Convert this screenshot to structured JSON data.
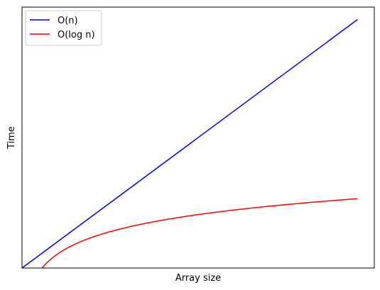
{
  "chart_data": {
    "type": "line",
    "title": "",
    "xlabel": "Array size",
    "ylabel": "Time",
    "x_ticks_shown": false,
    "y_ticks_shown": false,
    "grid": false,
    "legend_position": "top-left",
    "xlim": [
      0,
      1050
    ],
    "ylim": [
      0,
      1050
    ],
    "series": [
      {
        "name": "O(n)",
        "color": "#0000ff",
        "function": "linear",
        "x": [
          1,
          100,
          200,
          300,
          400,
          500,
          600,
          700,
          800,
          900,
          1000
        ],
        "y": [
          1,
          100,
          200,
          300,
          400,
          500,
          600,
          700,
          800,
          900,
          1000
        ]
      },
      {
        "name": "O(log n)",
        "color": "#ff0000",
        "function": "log",
        "x": [
          60,
          70,
          80,
          100,
          130,
          170,
          220,
          300,
          400,
          500,
          600,
          700,
          800,
          900,
          1000
        ],
        "y": [
          0,
          15,
          28,
          50,
          76,
          103,
          129,
          160,
          189,
          211,
          229,
          244,
          257,
          269,
          279
        ]
      }
    ]
  }
}
